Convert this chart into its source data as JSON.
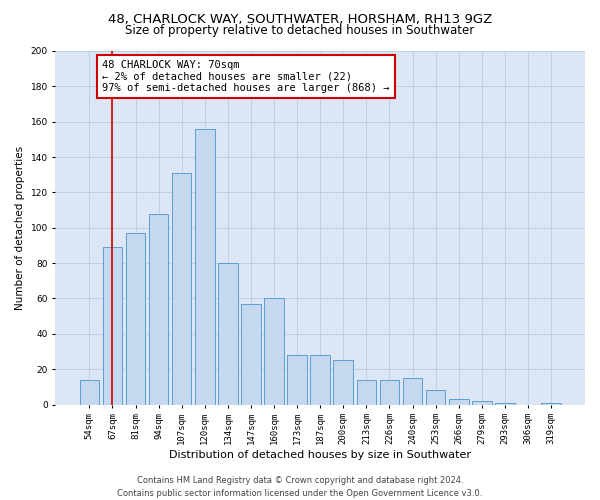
{
  "title": "48, CHARLOCK WAY, SOUTHWATER, HORSHAM, RH13 9GZ",
  "subtitle": "Size of property relative to detached houses in Southwater",
  "xlabel": "Distribution of detached houses by size in Southwater",
  "ylabel": "Number of detached properties",
  "bar_labels": [
    "54sqm",
    "67sqm",
    "81sqm",
    "94sqm",
    "107sqm",
    "120sqm",
    "134sqm",
    "147sqm",
    "160sqm",
    "173sqm",
    "187sqm",
    "200sqm",
    "213sqm",
    "226sqm",
    "240sqm",
    "253sqm",
    "266sqm",
    "279sqm",
    "293sqm",
    "306sqm",
    "319sqm"
  ],
  "bar_values": [
    14,
    89,
    97,
    108,
    131,
    156,
    80,
    57,
    60,
    28,
    28,
    25,
    14,
    14,
    15,
    8,
    3,
    2,
    1,
    0,
    1
  ],
  "bar_color": "#c5d8f0",
  "bar_edge_color": "#5a9fd4",
  "vline_x": 1,
  "vline_color": "#cc0000",
  "annotation_text": "48 CHARLOCK WAY: 70sqm\n← 2% of detached houses are smaller (22)\n97% of semi-detached houses are larger (868) →",
  "annotation_box_color": "#ffffff",
  "annotation_box_edge": "#cc0000",
  "ylim": [
    0,
    200
  ],
  "yticks": [
    0,
    20,
    40,
    60,
    80,
    100,
    120,
    140,
    160,
    180,
    200
  ],
  "grid_color": "#b8cce4",
  "bg_color": "#dce6f5",
  "footer": "Contains HM Land Registry data © Crown copyright and database right 2024.\nContains public sector information licensed under the Open Government Licence v3.0.",
  "title_fontsize": 9.5,
  "subtitle_fontsize": 8.5,
  "xlabel_fontsize": 8,
  "ylabel_fontsize": 7.5,
  "tick_fontsize": 6.5,
  "annotation_fontsize": 7.5,
  "footer_fontsize": 6
}
